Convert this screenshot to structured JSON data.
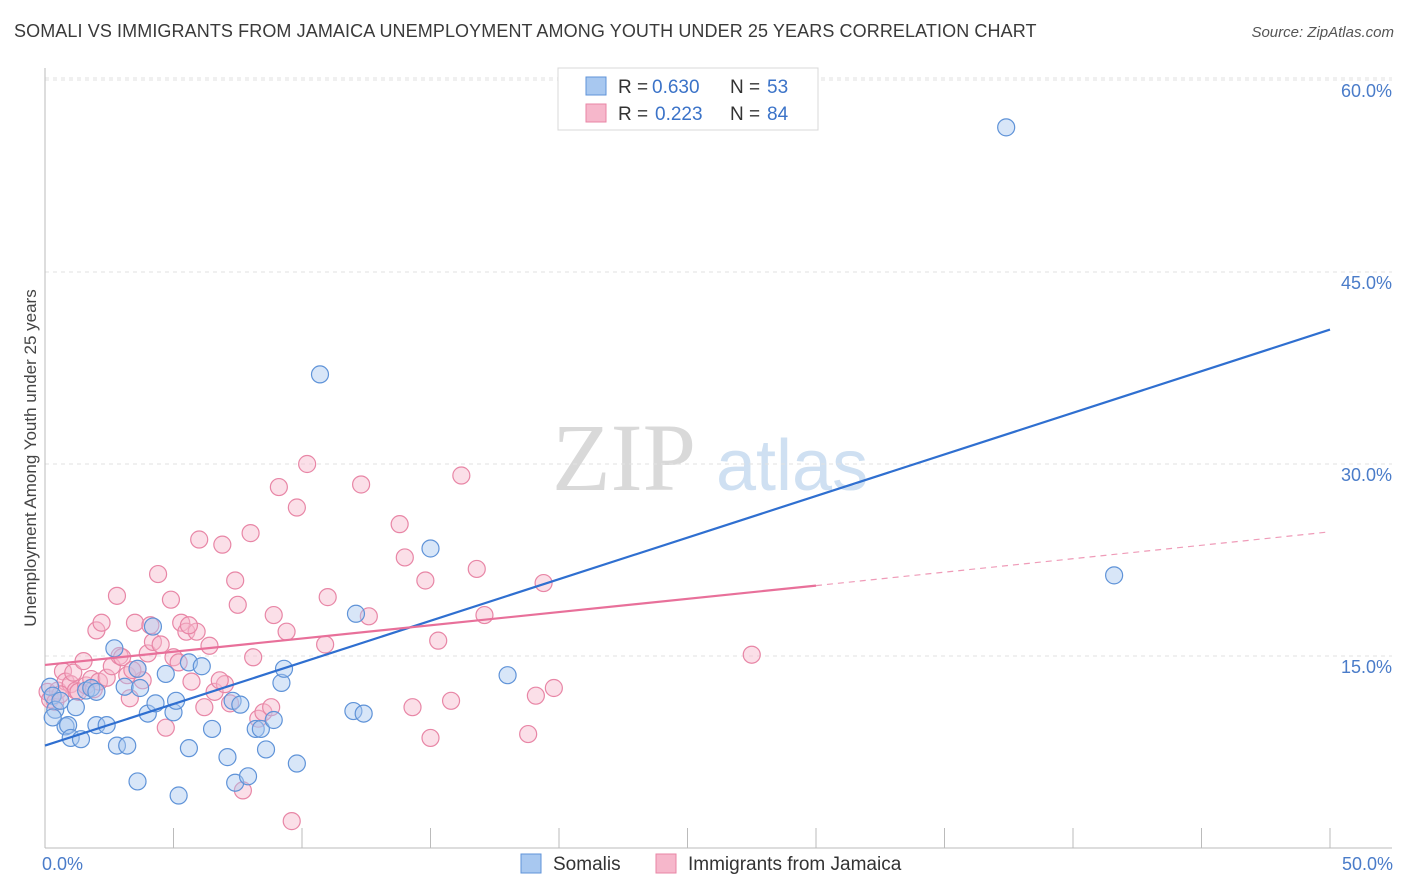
{
  "title": "SOMALI VS IMMIGRANTS FROM JAMAICA UNEMPLOYMENT AMONG YOUTH UNDER 25 YEARS CORRELATION CHART",
  "source": "Source: ZipAtlas.com",
  "watermark": {
    "zip": "ZIP",
    "atlas": "atlas"
  },
  "colors": {
    "somali_fill": "#a8c8f0",
    "somali_stroke": "#5f93d8",
    "somali_line": "#2f6fd0",
    "jamaica_fill": "#f6b7cb",
    "jamaica_stroke": "#e886a6",
    "jamaica_line": "#e8709a",
    "tick_text": "#4a7cc9",
    "grid": "#e2e2e2"
  },
  "legend": {
    "somali": {
      "r_label": "R =",
      "r_value": "0.630",
      "n_label": "N =",
      "n_value": "53"
    },
    "jamaica": {
      "r_label": "R =",
      "r_value": "0.223",
      "n_label": "N =",
      "n_value": "84"
    }
  },
  "chart_data": {
    "type": "scatter",
    "title": "SOMALI VS IMMIGRANTS FROM JAMAICA UNEMPLOYMENT AMONG YOUTH UNDER 25 YEARS CORRELATION CHART",
    "xlabel": "",
    "ylabel": "Unemployment Among Youth under 25 years",
    "xlim": [
      0,
      50
    ],
    "ylim": [
      0,
      60
    ],
    "x_ticks": [
      "0.0%",
      "50.0%"
    ],
    "y_ticks": [
      {
        "value": 15,
        "label": "15.0%"
      },
      {
        "value": 30,
        "label": "30.0%"
      },
      {
        "value": 45,
        "label": "45.0%"
      },
      {
        "value": 60,
        "label": "60.0%"
      }
    ],
    "series": [
      {
        "name": "Somalis",
        "r": 0.63,
        "n": 53,
        "trend": {
          "x0": 0,
          "y0": 8.0,
          "x1": 50,
          "y1": 40.5
        },
        "points": [
          [
            0.2,
            12.6
          ],
          [
            0.3,
            11.9
          ],
          [
            0.4,
            10.8
          ],
          [
            0.6,
            11.5
          ],
          [
            0.8,
            9.5
          ],
          [
            0.9,
            9.6
          ],
          [
            1.0,
            8.6
          ],
          [
            1.2,
            11.0
          ],
          [
            1.4,
            8.5
          ],
          [
            1.6,
            12.3
          ],
          [
            1.8,
            12.5
          ],
          [
            2.0,
            12.2
          ],
          [
            2.0,
            9.6
          ],
          [
            2.4,
            9.6
          ],
          [
            2.7,
            15.6
          ],
          [
            2.8,
            8.0
          ],
          [
            3.1,
            12.6
          ],
          [
            3.2,
            8.0
          ],
          [
            3.6,
            14.0
          ],
          [
            3.6,
            5.2
          ],
          [
            3.7,
            12.5
          ],
          [
            4.0,
            10.5
          ],
          [
            4.2,
            17.3
          ],
          [
            4.3,
            11.3
          ],
          [
            4.7,
            13.6
          ],
          [
            5.0,
            10.6
          ],
          [
            5.1,
            11.5
          ],
          [
            5.2,
            4.1
          ],
          [
            5.6,
            14.5
          ],
          [
            5.6,
            7.8
          ],
          [
            6.1,
            14.2
          ],
          [
            6.5,
            9.3
          ],
          [
            7.1,
            7.1
          ],
          [
            7.3,
            11.5
          ],
          [
            7.4,
            5.1
          ],
          [
            7.6,
            11.2
          ],
          [
            7.9,
            5.6
          ],
          [
            8.2,
            9.3
          ],
          [
            8.4,
            9.3
          ],
          [
            8.6,
            7.7
          ],
          [
            8.9,
            10.0
          ],
          [
            9.2,
            12.9
          ],
          [
            9.3,
            14.0
          ],
          [
            9.8,
            6.6
          ],
          [
            10.7,
            37.0
          ],
          [
            12.0,
            10.7
          ],
          [
            12.1,
            18.3
          ],
          [
            12.4,
            10.5
          ],
          [
            15.0,
            23.4
          ],
          [
            18.0,
            13.5
          ],
          [
            37.4,
            56.3
          ],
          [
            41.6,
            21.3
          ],
          [
            0.3,
            10.2
          ]
        ]
      },
      {
        "name": "Immigrants from Jamaica",
        "r": 0.223,
        "n": 84,
        "trend": {
          "x0": 0,
          "y0": 14.3,
          "x1": 30,
          "y1": 20.5
        },
        "trend_dashed": {
          "x0": 30,
          "y0": 20.5,
          "x1": 50,
          "y1": 24.7
        },
        "points": [
          [
            0.1,
            12.2
          ],
          [
            0.2,
            11.6
          ],
          [
            0.4,
            11.4
          ],
          [
            0.5,
            12.3
          ],
          [
            0.7,
            13.8
          ],
          [
            0.8,
            13.0
          ],
          [
            1.0,
            12.8
          ],
          [
            1.1,
            13.7
          ],
          [
            1.2,
            12.3
          ],
          [
            1.3,
            12.2
          ],
          [
            1.5,
            14.6
          ],
          [
            1.6,
            12.7
          ],
          [
            1.8,
            13.2
          ],
          [
            1.9,
            12.4
          ],
          [
            2.0,
            17.0
          ],
          [
            2.1,
            13.0
          ],
          [
            2.2,
            17.6
          ],
          [
            2.4,
            13.3
          ],
          [
            2.6,
            14.2
          ],
          [
            2.8,
            19.7
          ],
          [
            2.9,
            15.0
          ],
          [
            3.0,
            14.9
          ],
          [
            3.2,
            13.5
          ],
          [
            3.3,
            11.7
          ],
          [
            3.5,
            17.6
          ],
          [
            3.6,
            14.0
          ],
          [
            3.8,
            13.1
          ],
          [
            4.0,
            15.2
          ],
          [
            4.1,
            17.4
          ],
          [
            4.2,
            16.1
          ],
          [
            4.4,
            21.4
          ],
          [
            4.5,
            15.9
          ],
          [
            4.7,
            9.4
          ],
          [
            4.9,
            19.4
          ],
          [
            5.0,
            14.9
          ],
          [
            5.2,
            14.5
          ],
          [
            5.3,
            17.6
          ],
          [
            5.5,
            16.9
          ],
          [
            5.7,
            13.0
          ],
          [
            5.9,
            16.9
          ],
          [
            6.0,
            24.1
          ],
          [
            6.2,
            11.0
          ],
          [
            6.4,
            15.8
          ],
          [
            6.6,
            12.2
          ],
          [
            6.9,
            23.7
          ],
          [
            7.0,
            12.8
          ],
          [
            7.2,
            11.3
          ],
          [
            7.4,
            20.9
          ],
          [
            7.5,
            19.0
          ],
          [
            7.7,
            4.5
          ],
          [
            8.0,
            24.6
          ],
          [
            8.1,
            14.9
          ],
          [
            8.3,
            10.1
          ],
          [
            8.5,
            10.6
          ],
          [
            8.9,
            18.2
          ],
          [
            9.1,
            28.2
          ],
          [
            9.4,
            16.9
          ],
          [
            9.6,
            2.1
          ],
          [
            9.8,
            26.6
          ],
          [
            10.2,
            30.0
          ],
          [
            10.9,
            15.9
          ],
          [
            11.0,
            19.6
          ],
          [
            12.3,
            28.4
          ],
          [
            12.6,
            18.1
          ],
          [
            13.8,
            25.3
          ],
          [
            14.0,
            22.7
          ],
          [
            14.3,
            11.0
          ],
          [
            14.8,
            20.9
          ],
          [
            15.0,
            8.6
          ],
          [
            15.3,
            16.2
          ],
          [
            15.8,
            11.5
          ],
          [
            16.2,
            29.1
          ],
          [
            16.8,
            21.8
          ],
          [
            17.1,
            18.2
          ],
          [
            18.8,
            8.9
          ],
          [
            19.1,
            11.9
          ],
          [
            19.4,
            20.7
          ],
          [
            19.8,
            12.5
          ],
          [
            27.5,
            15.1
          ],
          [
            6.8,
            13.1
          ],
          [
            3.4,
            13.9
          ],
          [
            5.6,
            17.4
          ],
          [
            8.8,
            11.0
          ],
          [
            0.6,
            12.0
          ]
        ]
      }
    ],
    "legend_labels": [
      "Somalis",
      "Immigrants from Jamaica"
    ]
  }
}
